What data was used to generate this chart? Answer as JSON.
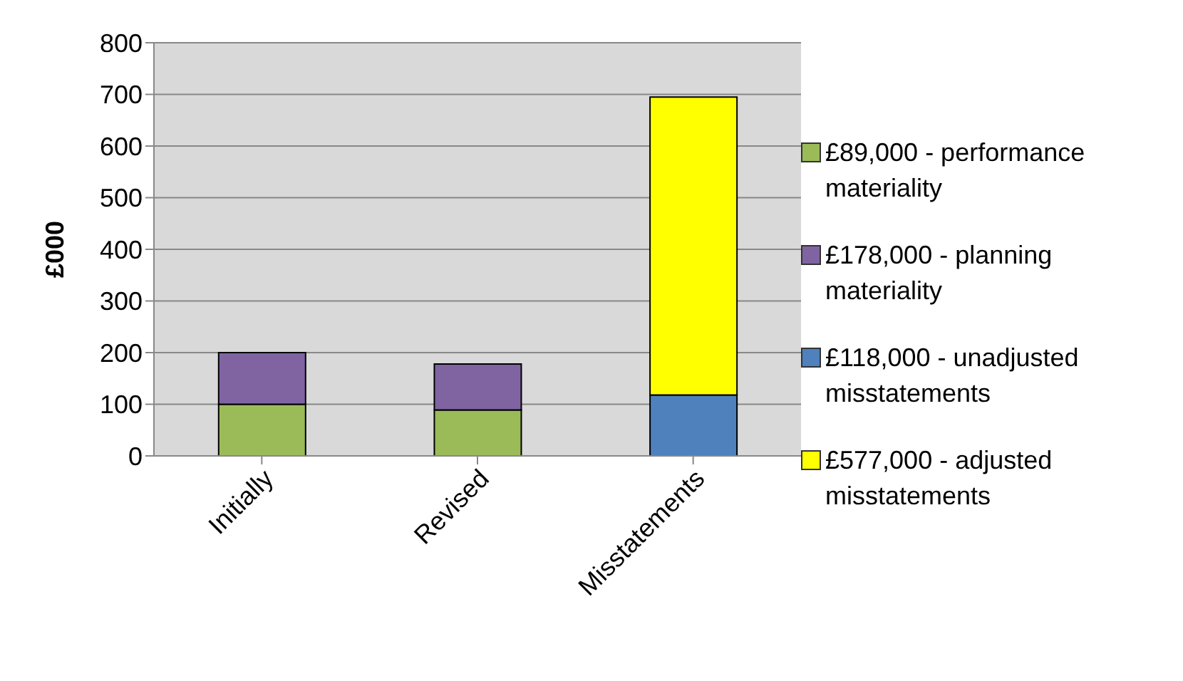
{
  "chart_data": {
    "type": "bar",
    "stacked": true,
    "ylabel": "£000",
    "categories": [
      "Initially",
      "Revised",
      "Misstatements"
    ],
    "series": [
      {
        "name": "£89,000 - performance materiality",
        "color": "#9bbb59",
        "values": [
          100,
          89,
          null
        ]
      },
      {
        "name": "£178,000 - planning materiality",
        "color": "#8064a2",
        "values": [
          100,
          89,
          null
        ]
      },
      {
        "name": "£118,000 - unadjusted misstatements",
        "color": "#4f81bd",
        "values": [
          null,
          null,
          118
        ]
      },
      {
        "name": "£577,000 - adjusted misstatements",
        "color": "#ffff00",
        "values": [
          null,
          null,
          577
        ]
      }
    ],
    "ylim": [
      0,
      800
    ],
    "yticks": [
      0,
      100,
      200,
      300,
      400,
      500,
      600,
      700,
      800
    ],
    "grid": "y",
    "legend": "right"
  }
}
